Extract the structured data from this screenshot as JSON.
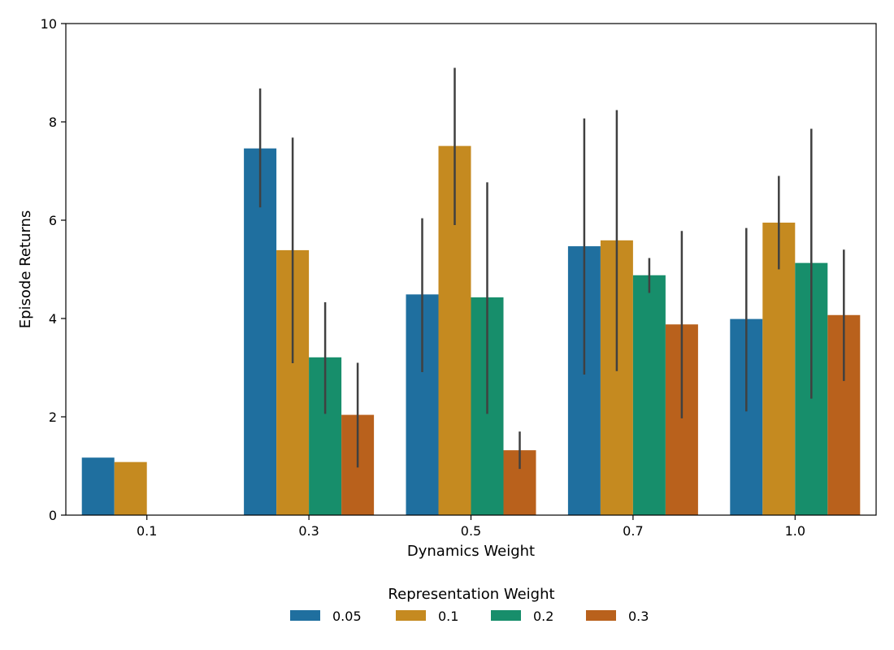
{
  "chart_data": {
    "type": "bar",
    "xlabel": "Dynamics Weight",
    "ylabel": "Episode Returns",
    "ylim": [
      0,
      10
    ],
    "yticks": [
      0,
      2,
      4,
      6,
      8,
      10
    ],
    "categories": [
      "0.1",
      "0.3",
      "0.5",
      "0.7",
      "1.0"
    ],
    "legend": {
      "title": "Representation Weight",
      "placement": "bottom-center"
    },
    "grid": false,
    "error_bars": true,
    "series": [
      {
        "name": "0.05",
        "color": "#1f6f9f",
        "values": [
          1.17,
          7.46,
          4.49,
          5.47,
          3.99
        ],
        "err_low": [
          null,
          6.26,
          2.91,
          2.86,
          2.11
        ],
        "err_high": [
          null,
          8.68,
          6.04,
          8.07,
          5.84
        ]
      },
      {
        "name": "0.1",
        "color": "#c58a20",
        "values": [
          1.08,
          5.39,
          7.51,
          5.59,
          5.95
        ],
        "err_low": [
          null,
          3.09,
          5.9,
          2.93,
          5.0
        ],
        "err_high": [
          null,
          7.68,
          9.1,
          8.24,
          6.9
        ]
      },
      {
        "name": "0.2",
        "color": "#178e6b",
        "values": [
          null,
          3.21,
          4.43,
          4.88,
          5.13
        ],
        "err_low": [
          null,
          2.06,
          2.06,
          4.52,
          2.37
        ],
        "err_high": [
          null,
          4.33,
          6.77,
          5.23,
          7.86
        ]
      },
      {
        "name": "0.3",
        "color": "#b9611c",
        "values": [
          null,
          2.04,
          1.32,
          3.88,
          4.07
        ],
        "err_low": [
          null,
          0.97,
          0.94,
          1.97,
          2.73
        ],
        "err_high": [
          null,
          3.1,
          1.7,
          5.78,
          5.4
        ]
      }
    ]
  }
}
